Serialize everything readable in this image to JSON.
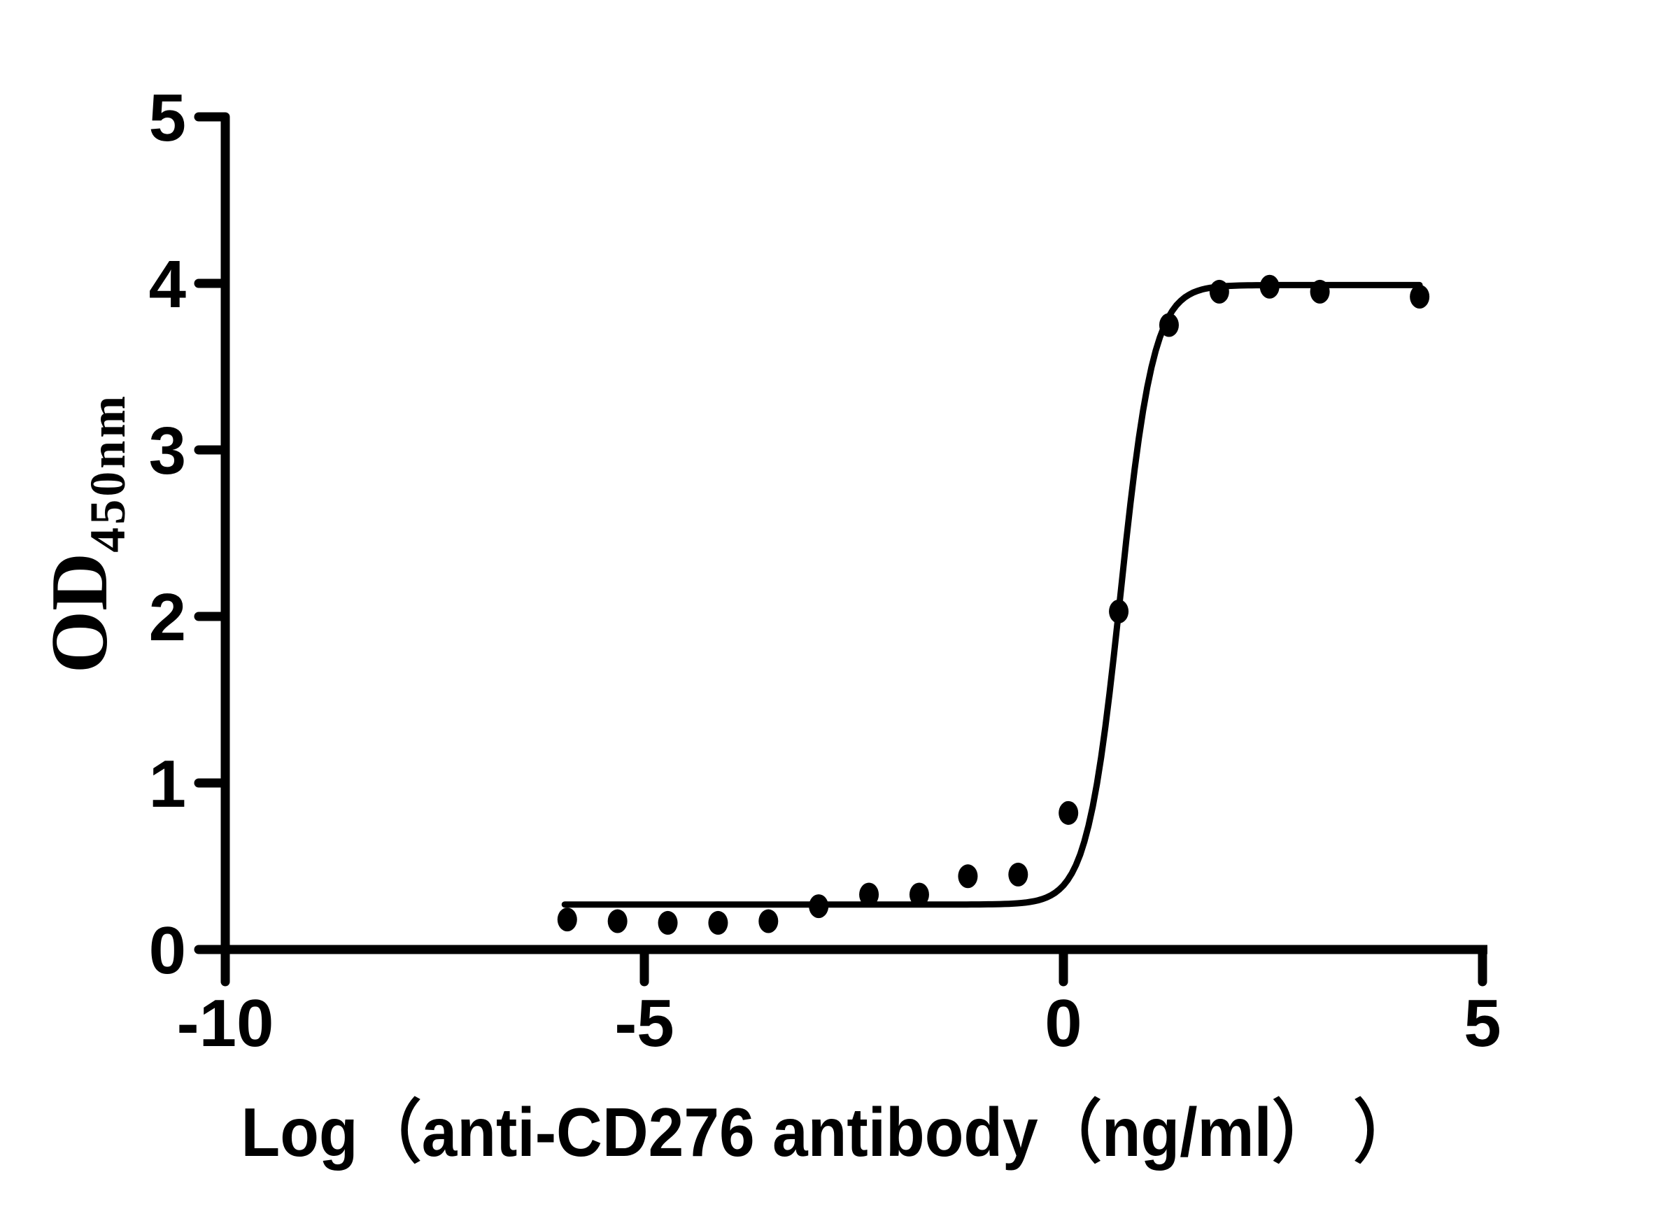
{
  "chart_data": {
    "type": "scatter",
    "title": "",
    "xlabel": "Log（anti-CD276 antibody（ng/ml） ）",
    "ylabel": {
      "main": "OD",
      "sub": "450nm"
    },
    "x_axis": {
      "min": -10,
      "max": 5,
      "tick_values": [
        -10,
        -5,
        0,
        5
      ],
      "tick_labels": [
        "-10",
        "-5",
        "0",
        "5"
      ]
    },
    "y_axis": {
      "min": 0,
      "max": 5,
      "tick_values": [
        0,
        1,
        2,
        3,
        4,
        5
      ],
      "tick_labels": [
        "0",
        "1",
        "2",
        "3",
        "4",
        "5"
      ]
    },
    "grid": false,
    "legend": false,
    "marker": {
      "shape": "filled-ellipse",
      "color": "#000000"
    },
    "curve_color": "#000000",
    "background": "#ffffff",
    "points": [
      {
        "x": -5.92,
        "od": 0.18
      },
      {
        "x": -5.32,
        "od": 0.17
      },
      {
        "x": -4.72,
        "od": 0.16
      },
      {
        "x": -4.12,
        "od": 0.16
      },
      {
        "x": -3.52,
        "od": 0.17
      },
      {
        "x": -2.92,
        "od": 0.26
      },
      {
        "x": -2.32,
        "od": 0.33
      },
      {
        "x": -1.72,
        "od": 0.33
      },
      {
        "x": -1.14,
        "od": 0.44
      },
      {
        "x": -0.54,
        "od": 0.45
      },
      {
        "x": 0.06,
        "od": 0.82
      },
      {
        "x": 0.66,
        "od": 2.03
      },
      {
        "x": 1.26,
        "od": 3.75
      },
      {
        "x": 1.86,
        "od": 3.95
      },
      {
        "x": 2.46,
        "od": 3.98
      },
      {
        "x": 3.06,
        "od": 3.95
      },
      {
        "x": 4.25,
        "od": 3.92
      }
    ],
    "fit_curve": {
      "model": "4PL",
      "bottom": 0.27,
      "top": 3.99,
      "log_ec50": 0.68,
      "hill_slope": 2.2,
      "x_start": -5.95,
      "x_end": 4.27
    }
  }
}
